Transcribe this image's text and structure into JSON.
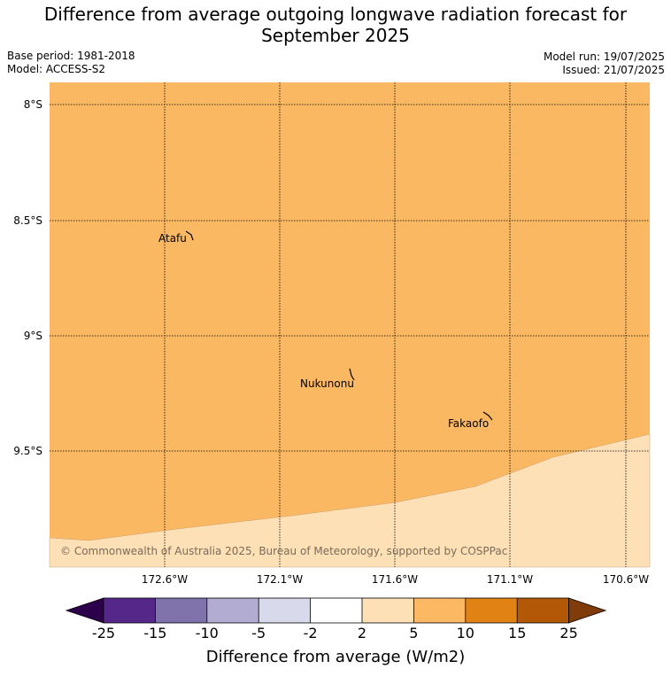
{
  "header": {
    "title_line1": "Difference from average outgoing longwave radiation forecast for",
    "title_line2": "September 2025",
    "base_period": "Base period: 1981-2018",
    "model": "Model: ACCESS-S2",
    "model_run": "Model run: 19/07/2025",
    "issued": "Issued: 21/07/2025"
  },
  "map": {
    "lat_labels": [
      "8°S",
      "8.5°S",
      "9°S",
      "9.5°S"
    ],
    "lon_labels": [
      "172.6°W",
      "172.1°W",
      "171.6°W",
      "171.1°W",
      "170.6°W"
    ],
    "places": [
      {
        "name": "Atafu"
      },
      {
        "name": "Nukunonu"
      },
      {
        "name": "Fakaofo"
      }
    ],
    "copyright": "© Commonwealth of Australia 2025, Bureau of Meteorology, supported by COSPPac",
    "fill_colors": {
      "band_5_10": "#fbb862",
      "band_2_5": "#fee0b6"
    }
  },
  "colorbar": {
    "title": "Difference from average (W/m2)",
    "tick_labels": [
      "-25",
      "-15",
      "-10",
      "-5",
      "-2",
      "2",
      "5",
      "10",
      "15",
      "25"
    ],
    "colors": [
      "#2d004b",
      "#542788",
      "#8073ac",
      "#b2abd2",
      "#d8daeb",
      "#ffffff",
      "#fee0b6",
      "#fdb863",
      "#e08214",
      "#b35806",
      "#7f3b08"
    ]
  }
}
